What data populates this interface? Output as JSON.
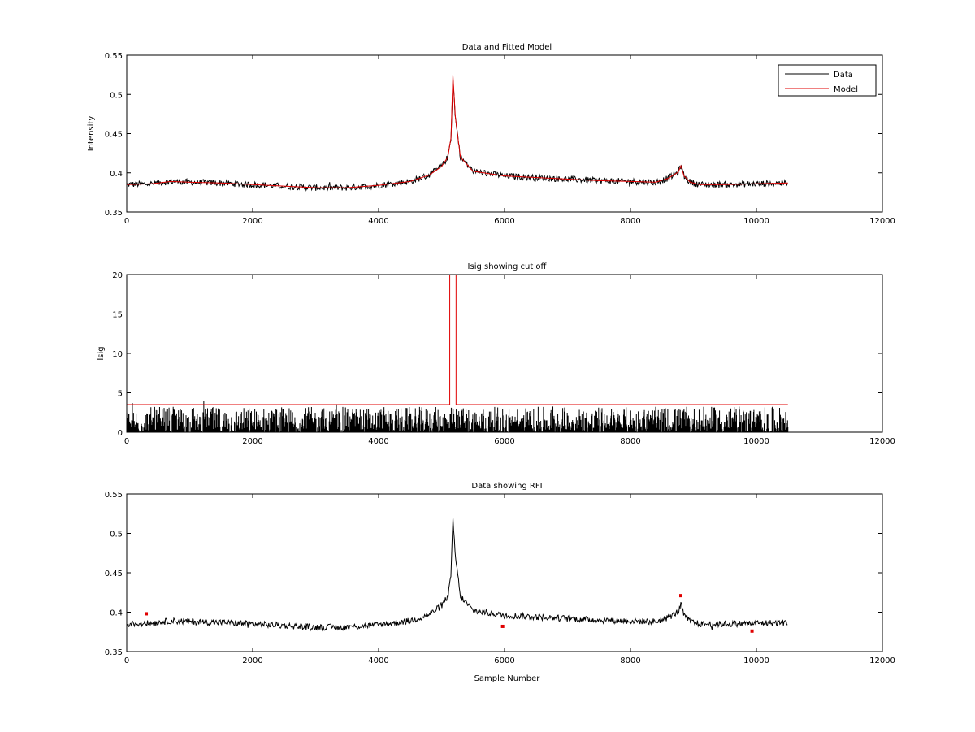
{
  "chart_data": [
    {
      "type": "line",
      "title": "Data and Fitted Model",
      "xlabel": "",
      "ylabel": "Intensity",
      "xlim": [
        0,
        12000
      ],
      "ylim": [
        0.35,
        0.55
      ],
      "xticks": [
        0,
        2000,
        4000,
        6000,
        8000,
        10000,
        12000
      ],
      "yticks": [
        0.35,
        0.4,
        0.45,
        0.5,
        0.55
      ],
      "xtick_labels": [
        "0",
        "2000",
        "4000",
        "6000",
        "8000",
        "10000",
        "12000"
      ],
      "ytick_labels": [
        "0.35",
        "0.4",
        "0.45",
        "0.5",
        "0.55"
      ],
      "grid": false,
      "legend": {
        "placement": "top-right",
        "entries": [
          {
            "name": "Data",
            "color": "#000000"
          },
          {
            "name": "Model",
            "color": "#e00000"
          }
        ]
      },
      "series": [
        {
          "name": "Data",
          "color": "#000000",
          "style": "noisy",
          "x": [
            0,
            400,
            700,
            1000,
            1500,
            2000,
            2500,
            3000,
            3500,
            4000,
            4500,
            4800,
            5000,
            5100,
            5150,
            5180,
            5220,
            5300,
            5500,
            6000,
            6500,
            7000,
            7500,
            8000,
            8400,
            8600,
            8700,
            8760,
            8800,
            8820,
            8850,
            8950,
            9100,
            9500,
            10000,
            10500
          ],
          "y": [
            0.385,
            0.386,
            0.389,
            0.388,
            0.387,
            0.385,
            0.383,
            0.381,
            0.381,
            0.384,
            0.389,
            0.397,
            0.408,
            0.42,
            0.445,
            0.52,
            0.47,
            0.42,
            0.402,
            0.396,
            0.394,
            0.392,
            0.39,
            0.389,
            0.388,
            0.393,
            0.398,
            0.401,
            0.409,
            0.404,
            0.396,
            0.388,
            0.385,
            0.385,
            0.386,
            0.387
          ],
          "noise": 0.004
        },
        {
          "name": "Model",
          "color": "#e00000",
          "style": "smooth",
          "x": [
            0,
            400,
            700,
            1000,
            1500,
            2000,
            2500,
            3000,
            3500,
            4000,
            4500,
            4800,
            5000,
            5100,
            5150,
            5180,
            5220,
            5300,
            5500,
            6000,
            6500,
            7000,
            7500,
            8000,
            8400,
            8600,
            8700,
            8760,
            8800,
            8820,
            8850,
            8950,
            9100,
            9500,
            10000,
            10500
          ],
          "y": [
            0.385,
            0.386,
            0.389,
            0.388,
            0.387,
            0.385,
            0.383,
            0.381,
            0.381,
            0.384,
            0.389,
            0.397,
            0.408,
            0.42,
            0.445,
            0.525,
            0.47,
            0.42,
            0.402,
            0.396,
            0.394,
            0.392,
            0.39,
            0.389,
            0.388,
            0.393,
            0.398,
            0.401,
            0.409,
            0.404,
            0.396,
            0.388,
            0.385,
            0.385,
            0.386,
            0.387
          ]
        }
      ]
    },
    {
      "type": "line",
      "title": "Isig showing cut off",
      "xlabel": "",
      "ylabel": "Isig",
      "xlim": [
        0,
        12000
      ],
      "ylim": [
        0,
        20
      ],
      "xticks": [
        0,
        2000,
        4000,
        6000,
        8000,
        10000,
        12000
      ],
      "yticks": [
        0,
        5,
        10,
        15,
        20
      ],
      "xtick_labels": [
        "0",
        "2000",
        "4000",
        "6000",
        "8000",
        "10000",
        "12000"
      ],
      "ytick_labels": [
        "0",
        "5",
        "10",
        "15",
        "20"
      ],
      "grid": false,
      "series": [
        {
          "name": "",
          "color": "#000000",
          "style": "noise-floor",
          "x_range": [
            0,
            10500
          ],
          "y_min": 0,
          "y_max": 3.8
        },
        {
          "name": "",
          "color": "#e00000",
          "style": "step",
          "x": [
            0,
            5130,
            5130,
            5230,
            5230,
            10500
          ],
          "y": [
            3.5,
            3.5,
            20,
            20,
            3.5,
            3.5
          ]
        }
      ]
    },
    {
      "type": "line",
      "title": "Data showing RFI",
      "xlabel": "Sample Number",
      "ylabel": "",
      "xlim": [
        0,
        12000
      ],
      "ylim": [
        0.35,
        0.55
      ],
      "xticks": [
        0,
        2000,
        4000,
        6000,
        8000,
        10000,
        12000
      ],
      "yticks": [
        0.35,
        0.4,
        0.45,
        0.5,
        0.55
      ],
      "xtick_labels": [
        "0",
        "2000",
        "4000",
        "6000",
        "8000",
        "10000",
        "12000"
      ],
      "ytick_labels": [
        "0.35",
        "0.4",
        "0.45",
        "0.5",
        "0.55"
      ],
      "grid": false,
      "series": [
        {
          "name": "",
          "color": "#000000",
          "style": "noisy",
          "x": [
            0,
            400,
            700,
            1000,
            1500,
            2000,
            2500,
            3000,
            3500,
            4000,
            4500,
            4800,
            5000,
            5100,
            5150,
            5180,
            5220,
            5300,
            5500,
            6000,
            6500,
            7000,
            7500,
            8000,
            8400,
            8600,
            8700,
            8760,
            8800,
            8820,
            8850,
            8950,
            9100,
            9500,
            10000,
            10500
          ],
          "y": [
            0.385,
            0.386,
            0.389,
            0.388,
            0.387,
            0.385,
            0.383,
            0.381,
            0.381,
            0.384,
            0.389,
            0.397,
            0.408,
            0.42,
            0.445,
            0.52,
            0.47,
            0.42,
            0.402,
            0.396,
            0.394,
            0.392,
            0.39,
            0.389,
            0.388,
            0.393,
            0.398,
            0.401,
            0.409,
            0.404,
            0.396,
            0.388,
            0.385,
            0.385,
            0.386,
            0.387
          ],
          "noise": 0.004
        },
        {
          "name": "",
          "color": "#e00000",
          "style": "markers",
          "x": [
            310,
            5970,
            8800,
            9930
          ],
          "y": [
            0.398,
            0.382,
            0.421,
            0.376
          ]
        }
      ]
    }
  ]
}
